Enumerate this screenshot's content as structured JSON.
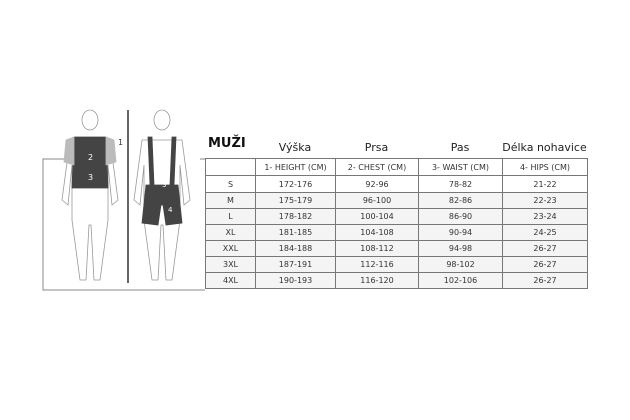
{
  "title": "MUŽI",
  "headers": [
    "Výška",
    "Prsa",
    "Pas",
    "Délka nohavice"
  ],
  "columns": [
    "",
    "1- HEIGHT (CM)",
    "2- CHEST (CM)",
    "3- WAIST (CM)",
    "4- HIPS (CM)"
  ],
  "rows": [
    [
      "S",
      "172-176",
      "92-96",
      "78-82",
      "21-22"
    ],
    [
      "M",
      "175-179",
      "96-100",
      "82-86",
      "22-23"
    ],
    [
      "L",
      "178-182",
      "100-104",
      "86-90",
      "23-24"
    ],
    [
      "XL",
      "181-185",
      "104-108",
      "90-94",
      "24-25"
    ],
    [
      "XXL",
      "184-188",
      "108-112",
      "94-98",
      "26-27"
    ],
    [
      "3XL",
      "187-191",
      "112-116",
      "98-102",
      "26-27"
    ],
    [
      "4XL",
      "190-193",
      "116-120",
      "102-106",
      "26-27"
    ]
  ],
  "figure_labels": {
    "height": "1",
    "chest": "2",
    "waist": "3",
    "hips": "4"
  }
}
